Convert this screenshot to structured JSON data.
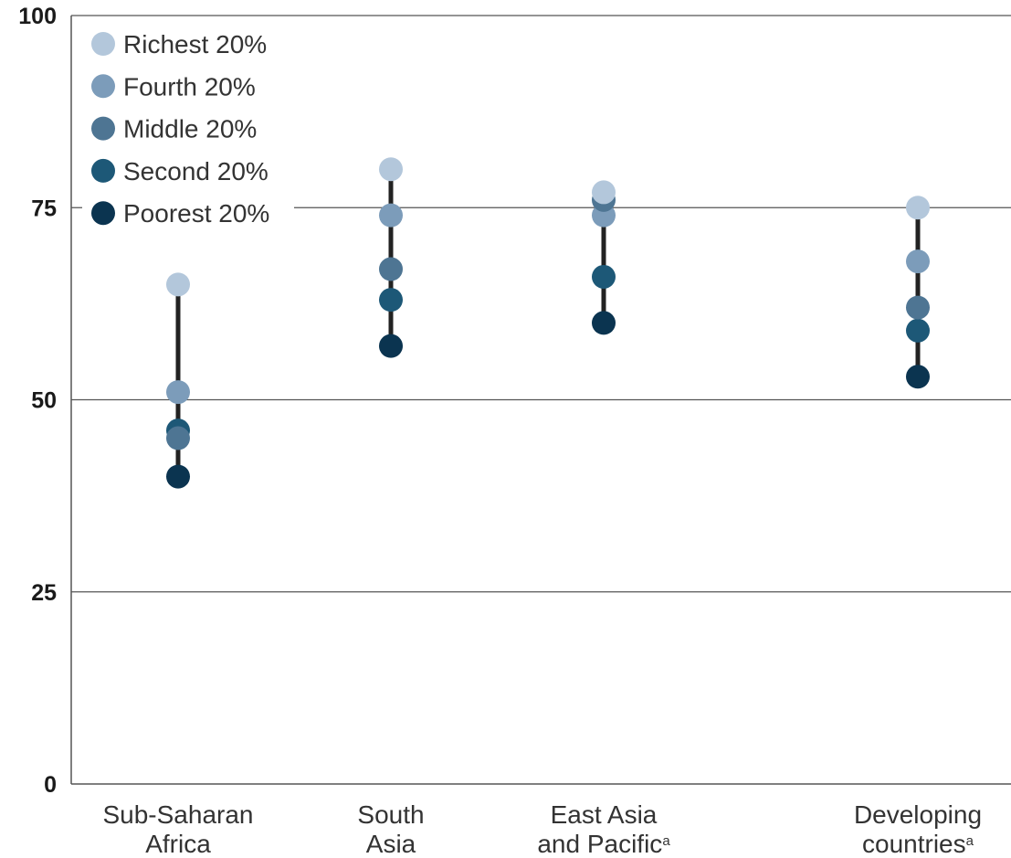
{
  "chart_data": {
    "type": "dot-range",
    "categories": [
      {
        "label_lines": [
          "Sub-Saharan",
          "Africa"
        ],
        "superscript": ""
      },
      {
        "label_lines": [
          "South",
          "Asia"
        ],
        "superscript": ""
      },
      {
        "label_lines": [
          "East Asia",
          "and Pacific"
        ],
        "superscript": "a"
      },
      {
        "label_lines": [
          "Developing",
          "countries"
        ],
        "superscript": "a"
      }
    ],
    "series": [
      {
        "name": "Richest 20%",
        "color": "#b3c7db",
        "values": [
          65,
          80,
          77,
          75
        ]
      },
      {
        "name": "Fourth 20%",
        "color": "#7c9cba",
        "values": [
          51,
          74,
          74,
          68
        ]
      },
      {
        "name": "Middle 20%",
        "color": "#4e7593",
        "values": [
          45,
          67,
          76,
          62
        ]
      },
      {
        "name": "Second 20%",
        "color": "#1d5877",
        "values": [
          46,
          63,
          66,
          59
        ]
      },
      {
        "name": "Poorest 20%",
        "color": "#0b3450",
        "values": [
          40,
          57,
          60,
          53
        ]
      }
    ],
    "legend_order": [
      0,
      1,
      2,
      3,
      4
    ],
    "ylim": [
      0,
      100
    ],
    "yticks": [
      0,
      25,
      50,
      75,
      100
    ],
    "grid": "horizontal",
    "legend_position": "top-left",
    "range_line_color": "#222222",
    "title": "",
    "xlabel": "",
    "ylabel": ""
  }
}
